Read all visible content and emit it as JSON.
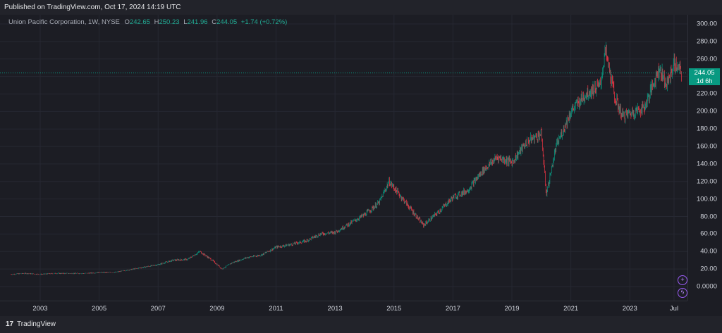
{
  "header": {
    "published": "Published on TradingView.com, Oct 17, 2024 14:19 UTC"
  },
  "legend": {
    "symbol": "Union Pacific Corporation, 1W, NYSE",
    "o_label": "O",
    "o_value": "242.65",
    "h_label": "H",
    "h_value": "250.23",
    "l_label": "L",
    "l_value": "241.96",
    "c_label": "C",
    "c_value": "244.05",
    "change": "+1.74 (+0.72%)"
  },
  "price_tag": {
    "price": "244.05",
    "countdown": "1d 6h"
  },
  "colors": {
    "up": "#089981",
    "down": "#f23645",
    "accent": "#9b5cf6",
    "background": "#1c1d24"
  },
  "icons": [
    "tradingview-logo-icon",
    "add-icon",
    "lightning-icon"
  ],
  "footer": {
    "logo_text": "17",
    "brand": "TradingView"
  },
  "chart_data": {
    "type": "candlestick",
    "title": "Union Pacific Corporation, 1W, NYSE",
    "y_ticks": [
      "300.00",
      "280.00",
      "260.00",
      "240.00",
      "220.00",
      "200.00",
      "180.00",
      "160.00",
      "140.00",
      "120.00",
      "100.00",
      "80.00",
      "60.00",
      "40.00",
      "20.00",
      "0.0000"
    ],
    "x_ticks": [
      "2003",
      "2005",
      "2007",
      "2009",
      "2011",
      "2013",
      "2015",
      "2017",
      "2019",
      "2021",
      "2023",
      "Jul"
    ],
    "ylim": [
      0,
      300
    ],
    "x": [
      "2002-01",
      "2002-07",
      "2003-01",
      "2003-07",
      "2004-01",
      "2004-07",
      "2005-01",
      "2005-07",
      "2006-01",
      "2006-07",
      "2007-01",
      "2007-07",
      "2008-01",
      "2008-06",
      "2008-11",
      "2009-03",
      "2009-07",
      "2010-01",
      "2010-07",
      "2011-01",
      "2011-07",
      "2012-01",
      "2012-07",
      "2013-01",
      "2013-07",
      "2014-01",
      "2014-07",
      "2014-11",
      "2015-06",
      "2016-01",
      "2016-07",
      "2017-01",
      "2017-07",
      "2018-01",
      "2018-07",
      "2019-01",
      "2019-07",
      "2020-01",
      "2020-03",
      "2020-07",
      "2021-01",
      "2021-07",
      "2022-01",
      "2022-03",
      "2022-07",
      "2022-10",
      "2023-03",
      "2023-07",
      "2024-01",
      "2024-04",
      "2024-07",
      "2024-10"
    ],
    "close": [
      14,
      15,
      14,
      15,
      15,
      15,
      16,
      16,
      19,
      22,
      25,
      30,
      31,
      40,
      30,
      20,
      27,
      33,
      36,
      45,
      48,
      52,
      60,
      62,
      72,
      82,
      96,
      120,
      95,
      70,
      85,
      102,
      110,
      132,
      148,
      142,
      165,
      175,
      105,
      160,
      200,
      220,
      230,
      270,
      215,
      195,
      200,
      205,
      250,
      230,
      255,
      244
    ],
    "last_price": 244.05
  }
}
